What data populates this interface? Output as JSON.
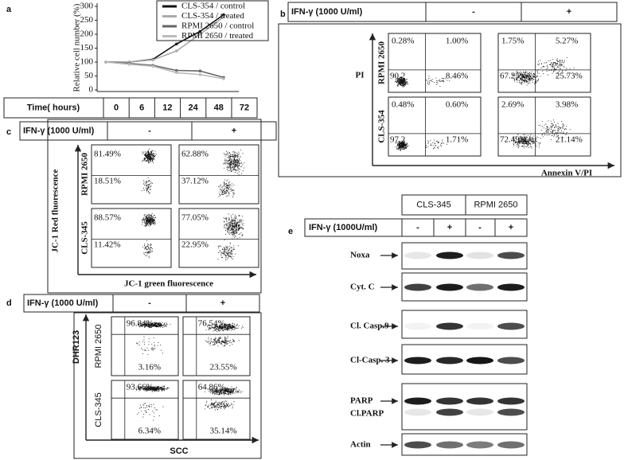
{
  "chart_data": {
    "type": "line",
    "label": "a",
    "y_label": "Relative cell number (%)",
    "x_label": "Time( hours)",
    "categories": [
      "0",
      "6",
      "12",
      "24",
      "48",
      "72"
    ],
    "series": [
      {
        "name": "CLS-354 / control",
        "color": "#111111",
        "values": [
          100,
          100,
          110,
          165,
          210,
          270
        ]
      },
      {
        "name": "CLS-354 / treated",
        "color": "#aaaaaa",
        "values": [
          100,
          100,
          108,
          140,
          200,
          262
        ]
      },
      {
        "name": "RPMI 2650 / control",
        "color": "#666666",
        "values": [
          100,
          95,
          88,
          70,
          68,
          45
        ]
      },
      {
        "name": "RPMI 2650 / treated",
        "color": "#bbbbbb",
        "values": [
          100,
          92,
          85,
          62,
          55,
          40
        ]
      }
    ],
    "ylim": [
      0,
      300
    ],
    "yticks": [
      0,
      50,
      100,
      150,
      200,
      250,
      300
    ]
  },
  "panel_b": {
    "label": "b",
    "treatment": "IFN-γ (1000 U/ml)",
    "conditions": [
      "-",
      "+"
    ],
    "y_label": "PI",
    "x_label": "Annexin V/PI",
    "rows": [
      {
        "name": "RPMI 2650",
        "plots": [
          [
            "0.28%",
            "1.00%",
            "90.2",
            "8.46%"
          ],
          [
            "1.75%",
            "5.27%",
            "67.25%",
            "25.73%"
          ]
        ]
      },
      {
        "name": "CLS-354",
        "plots": [
          [
            "0.48%",
            "0.60%",
            "97.2",
            "1.71%"
          ],
          [
            "2.69%",
            "3.98%",
            "72.49%",
            "21.14%"
          ]
        ]
      }
    ]
  },
  "panel_c": {
    "label": "c",
    "treatment": "IFN-γ (1000 U/ml)",
    "conditions": [
      "-",
      "+"
    ],
    "y_label": "JC-1 Red fluorescence",
    "x_label": "JC-1 green fluorescence",
    "rows": [
      {
        "name": "RPMI 2650",
        "plots": [
          [
            "81.49%",
            "18.51%"
          ],
          [
            "62.88%",
            "37.12%"
          ]
        ]
      },
      {
        "name": "CLS-345",
        "plots": [
          [
            "88.57%",
            "11.42%"
          ],
          [
            "77.05%",
            "22.95%"
          ]
        ]
      }
    ]
  },
  "panel_d": {
    "label": "d",
    "treatment": "IFN-γ (1000 U/ml)",
    "conditions": [
      "-",
      "+"
    ],
    "y_label": "DHR123",
    "x_label": "SCC",
    "rows": [
      {
        "name": "RPMI 2650",
        "plots": [
          [
            "96.84%",
            "3.16%"
          ],
          [
            "76.54%",
            "23.55%"
          ]
        ]
      },
      {
        "name": "CLS-345",
        "plots": [
          [
            "93.66%",
            "6.34%"
          ],
          [
            "64.86%",
            "35.14%"
          ]
        ]
      }
    ]
  },
  "panel_e": {
    "label": "e",
    "cell_lines": [
      "CLS-345",
      "RPMI 2650"
    ],
    "treatment": "IFN-γ (1000U/ml)",
    "conditions": [
      "-",
      "+",
      "-",
      "+"
    ],
    "proteins": [
      "Noxa",
      "Cyt. C",
      "Cl. Casp.9",
      "Cl-Casp. 3",
      "PARP",
      "Cl.PARP",
      "Actin"
    ]
  }
}
